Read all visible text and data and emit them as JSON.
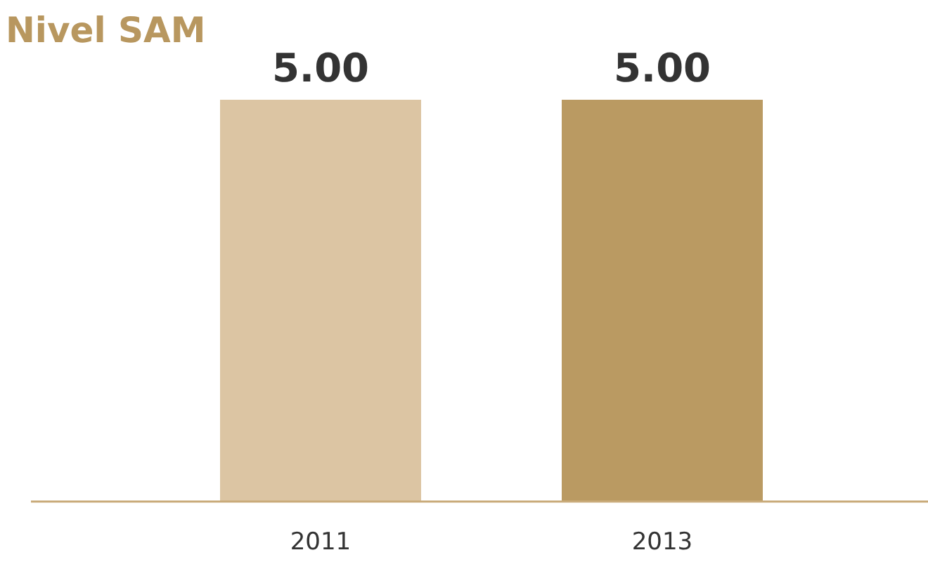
{
  "chart_data": {
    "type": "bar",
    "title": "Nivel SAM",
    "categories": [
      "2011",
      "2013"
    ],
    "values": [
      5,
      5
    ],
    "colors": [
      "#dcc5a3",
      "#ba9a62"
    ],
    "value_labels": [
      "5.00",
      "5.00"
    ]
  }
}
